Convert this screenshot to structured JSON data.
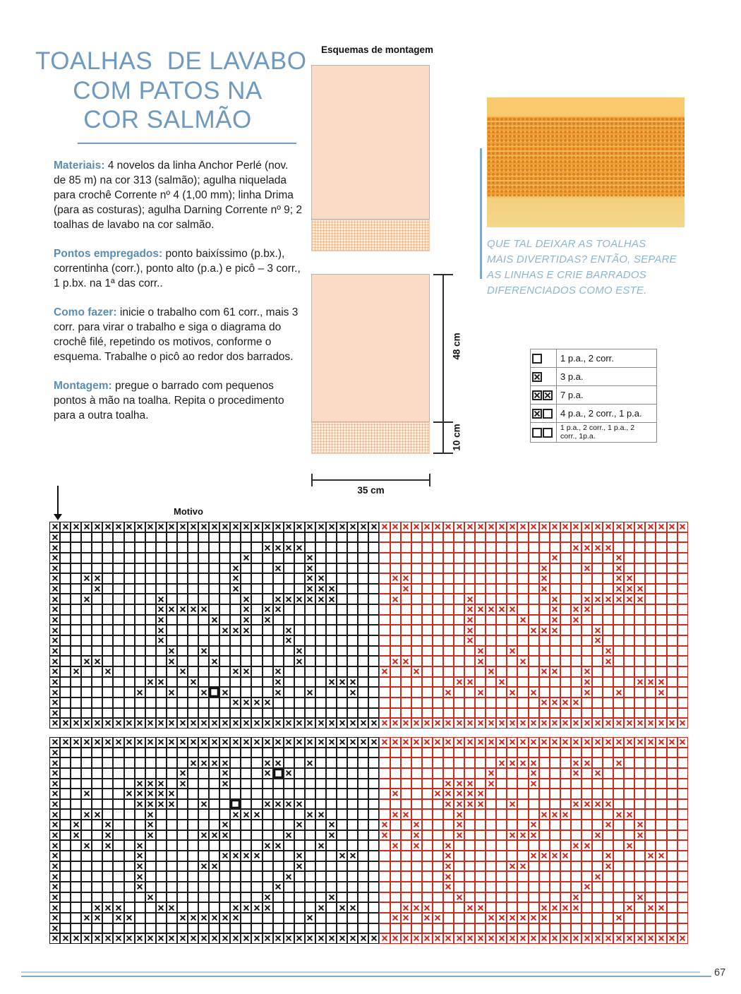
{
  "title": {
    "lines": [
      "TOALHAS  DE LAVABO",
      "COM PATOS NA",
      "COR SALMÃO"
    ]
  },
  "sections": [
    {
      "label": "Materiais:",
      "text": "4 novelos da linha Anchor Perlé (nov. de 85 m) na cor 313 (salmão); agulha niquelada para crochê Corrente nº 4 (1,00 mm); linha Drima (para as costuras); agulha Darning Corrente nº 9; 2 toalhas de lavabo na cor salmão."
    },
    {
      "label": "Pontos empregados:",
      "text": "ponto baixíssimo (p.bx.), correntinha (corr.), ponto alto (p.a.) e picô – 3 corr., 1 p.bx. na 1ª das corr.."
    },
    {
      "label": "Como fazer:",
      "text": "inicie o trabalho com 61 corr., mais 3 corr. para virar o trabalho e siga o diagrama do crochê filé, repetindo os motivos, conforme o esquema. Trabalhe o picô ao redor dos barrados."
    },
    {
      "label": "Montagem:",
      "text": "pregue o barrado com pequenos pontos à mão na toalha. Repita o procedimento para a outra toalha."
    }
  ],
  "schematics": {
    "heading": "Esquemas de montagem",
    "height_label": "48 cm",
    "band_label": "10 cm",
    "width_label": "35 cm"
  },
  "caption": {
    "lines": [
      "QUE TAL DEIXAR AS TOALHAS",
      "MAIS DIVERTIDAS? ENTÃO, SEPARE",
      "AS LINHAS E CRIE BARRADOS",
      "DIFERENCIADOS COMO ESTE."
    ]
  },
  "legend": {
    "rows": [
      {
        "symbols": [
          "empty"
        ],
        "label": "1 p.a., 2 corr."
      },
      {
        "symbols": [
          "x"
        ],
        "label": "3 p.a."
      },
      {
        "symbols": [
          "x",
          "x"
        ],
        "label": "7 p.a."
      },
      {
        "symbols": [
          "x",
          "empty"
        ],
        "label": "4 p.a., 2 corr., 1 p.a."
      },
      {
        "symbols": [
          "empty",
          "empty"
        ],
        "label": "1 p.a., 2 corr., 1 p.a., 2 corr., 1p.a.",
        "small": true
      }
    ]
  },
  "motif_label": "Motivo",
  "page_number": "67",
  "colors": {
    "accent_blue": "#7099c0",
    "caption_blue": "#8fb4cd",
    "salmon_fill": "#fbdbc5",
    "photo_orange": "#efa038",
    "chart_black": "#1b1b1b",
    "chart_red": "#d02b20",
    "footer_line_light": "#b7cde0",
    "footer_line_dark": "#84a7c4"
  },
  "chart_data": {
    "type": "table",
    "description": "Two filet-crochet pattern charts, 60 columns x 20 rows each. 'X' = filled block, '.' = open block, 'O' = bold outlined empty square. First 31 columns printed black (motif), remaining 29 columns are the motif repeated (columns 2-30) printed in red.",
    "columns_total": 60,
    "motif_columns": 31,
    "repeat_from_column": 2,
    "rows_per_chart": 20,
    "chart1_rows": [
      "XXXXXXXXXXXXXXXXXXXXXXXXXXXXXXX",
      "X..............................",
      "X...................XXXX.......",
      "X.................X.....X......",
      "X................X...X..X......",
      "X..XX............X......XX.....",
      "X...X............X......XXX....",
      "X..X......X.......X..XXXXXX....",
      "X.........XXXXX...X.XX.........",
      "X.........X....X..X.X..........",
      "X.........X.....XXX...X........",
      "X.........X...........X........",
      "X..........X..X........X.......",
      "X..XX......X...X.......X.......",
      "X.X..X......X....XX..X.........",
      "X........XX..X.......X....XXX..",
      "X.......X..X..XOX....X..X...X..",
      "X................XXXX..........",
      "X..............................",
      "XXXXXXXXXXXXXXXXXXXXXXXXXXXXXXX"
    ],
    "chart2_rows": [
      "XXXXXXXXXXXXXXXXXXXXXXXXXXXXXXX",
      "X..............................",
      "X............XXXX...XX..X......",
      "X...........X...X...XOX........",
      "X.......XXX.X...X..............",
      "X..X...XXXXX...................",
      "X.......XXXX..X..O..XXXX.......",
      "X..XX....X.......XXX....XX.....",
      "X.X..X...X......X......X..X....",
      "X.X..X...X....XXX.....X...X....",
      "X..X.X..X...........XX...X.....",
      "X.......X.......XXXX...X...XX..",
      "X.......X.....XX.......X.......",
      "X.......X.............X........",
      "X.......X............X.........",
      "X........X..........X.....X....",
      "X...XXX...XX.....XXXX....X.XX..",
      "X..XX.XX....XXXXXX......X......",
      "X..............................",
      "XXXXXXXXXXXXXXXXXXXXXXXXXXXXXXX"
    ]
  }
}
